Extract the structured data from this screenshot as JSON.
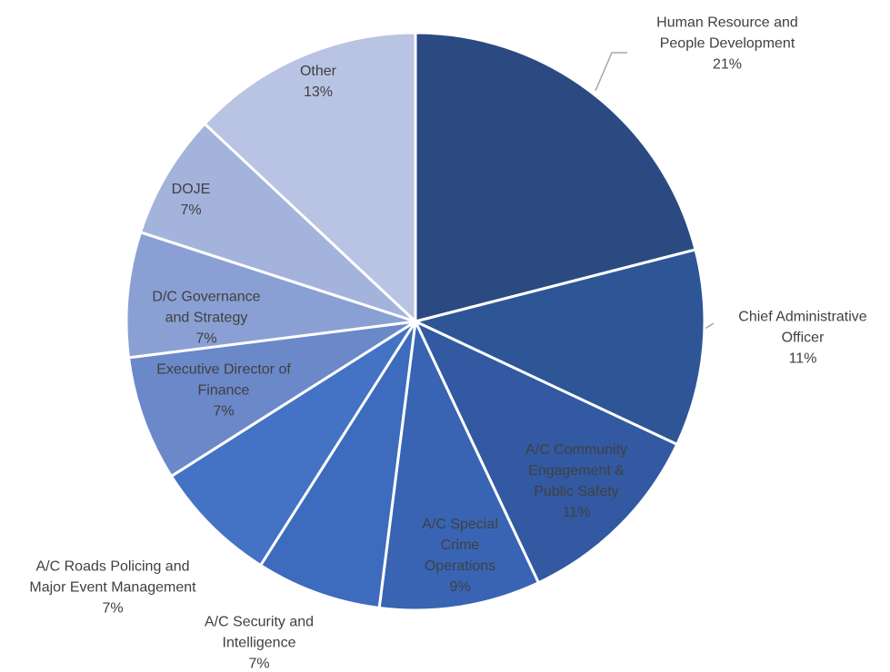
{
  "chart_data": {
    "type": "pie",
    "categories": [
      "Human Resource and People Development",
      "Chief Administrative Officer",
      "A/C Community Engagement & Public Safety",
      "A/C Special Crime Operations",
      "A/C Security and Intelligence",
      "A/C Roads Policing and Major Event Management",
      "Executive Director of Finance",
      "D/C Governance and Strategy",
      "DOJE",
      "Other"
    ],
    "values": [
      21,
      11,
      11,
      9,
      7,
      7,
      7,
      7,
      7,
      13
    ],
    "value_labels": [
      "21%",
      "11%",
      "11%",
      "9%",
      "7%",
      "7%",
      "7%",
      "7%",
      "7%",
      "13%"
    ],
    "colors": [
      "#2b4a82",
      "#2e5596",
      "#3259a1",
      "#3864b3",
      "#3d6bbd",
      "#4472c4",
      "#6b88c9",
      "#8aa0d4",
      "#a3b3dc",
      "#b9c3e3"
    ]
  }
}
